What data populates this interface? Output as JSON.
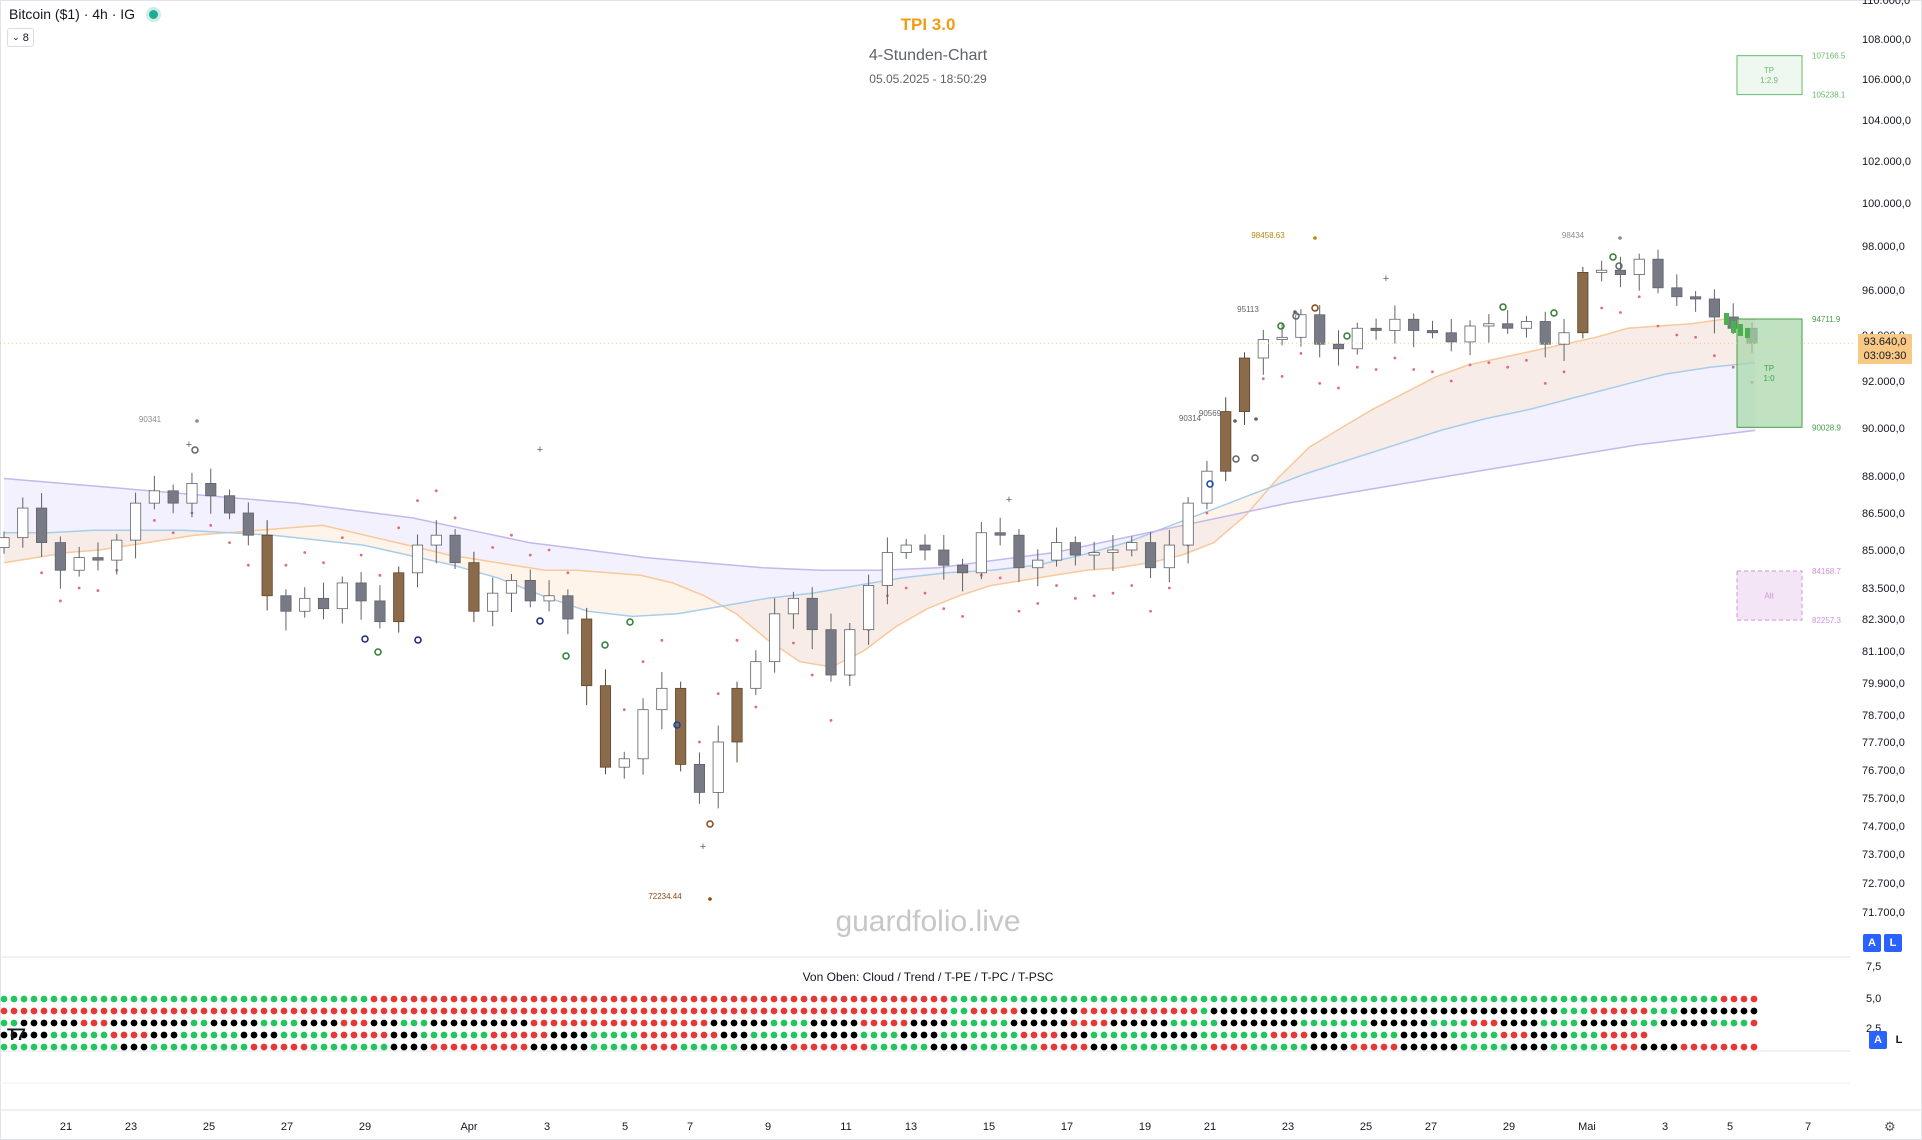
{
  "header": {
    "symbol": "Bitcoin ($1) · 4h · IG",
    "collapse_count": "8",
    "title": "TPI 3.0",
    "subtitle": "4-Stunden-Chart",
    "timestamp": "05.05.2025 - 18:50:29",
    "watermark": "guardfolio.live"
  },
  "indicator_panel": {
    "title": "Von Oben: Cloud / Trend / T-PE / T-PC / T-PSC",
    "axis_labels": [
      "7,5",
      "5,0",
      "2,5"
    ],
    "rows": [
      {
        "name": "Cloud",
        "pattern": [
          [
            "g",
            37
          ],
          [
            "r",
            58
          ],
          [
            "g",
            77
          ],
          [
            "r",
            4
          ]
        ]
      },
      {
        "name": "Trend",
        "pattern": [
          [
            "r",
            95
          ],
          [
            "g",
            2
          ],
          [
            "r",
            5
          ],
          [
            "k",
            6
          ],
          [
            "r",
            12
          ],
          [
            "g",
            1
          ],
          [
            "k",
            35
          ],
          [
            "g",
            3
          ],
          [
            "r",
            6
          ],
          [
            "g",
            3
          ],
          [
            "k",
            8
          ],
          [
            "g",
            6
          ],
          [
            "r",
            8
          ],
          [
            "g",
            4
          ],
          [
            "k",
            10
          ],
          [
            "g",
            3
          ],
          [
            "r",
            4
          ],
          [
            "g",
            3
          ],
          [
            "k",
            6
          ],
          [
            "g",
            5
          ],
          [
            "k",
            13
          ],
          [
            "r",
            12
          ]
        ]
      },
      {
        "name": "T-PE",
        "pattern": [
          [
            "g",
            2
          ],
          [
            "k",
            6
          ],
          [
            "r",
            3
          ],
          [
            "k",
            8
          ],
          [
            "g",
            2
          ],
          [
            "k",
            5
          ],
          [
            "g",
            4
          ],
          [
            "k",
            4
          ],
          [
            "r",
            3
          ],
          [
            "k",
            3
          ],
          [
            "g",
            3
          ],
          [
            "k",
            10
          ],
          [
            "r",
            18
          ],
          [
            "k",
            6
          ],
          [
            "g",
            4
          ],
          [
            "k",
            5
          ],
          [
            "r",
            5
          ],
          [
            "k",
            4
          ],
          [
            "g",
            6
          ],
          [
            "k",
            6
          ],
          [
            "r",
            4
          ],
          [
            "k",
            6
          ],
          [
            "g",
            5
          ],
          [
            "k",
            8
          ],
          [
            "g",
            7
          ],
          [
            "k",
            6
          ],
          [
            "g",
            4
          ],
          [
            "r",
            3
          ],
          [
            "k",
            4
          ],
          [
            "g",
            4
          ],
          [
            "k",
            5
          ],
          [
            "g",
            3
          ],
          [
            "k",
            5
          ],
          [
            "g",
            4
          ],
          [
            "r",
            4
          ],
          [
            "k",
            3
          ],
          [
            "k",
            10
          ]
        ]
      },
      {
        "name": "T-PC",
        "pattern": [
          [
            "k",
            5
          ],
          [
            "g",
            6
          ],
          [
            "r",
            4
          ],
          [
            "k",
            3
          ],
          [
            "g",
            6
          ],
          [
            "k",
            4
          ],
          [
            "g",
            5
          ],
          [
            "r",
            6
          ],
          [
            "k",
            3
          ],
          [
            "g",
            7
          ],
          [
            "r",
            6
          ],
          [
            "k",
            4
          ],
          [
            "g",
            5
          ],
          [
            "r",
            8
          ],
          [
            "k",
            3
          ],
          [
            "g",
            6
          ],
          [
            "k",
            5
          ],
          [
            "g",
            4
          ],
          [
            "k",
            4
          ],
          [
            "g",
            8
          ],
          [
            "r",
            4
          ],
          [
            "k",
            3
          ],
          [
            "g",
            6
          ],
          [
            "k",
            5
          ],
          [
            "g",
            7
          ],
          [
            "r",
            4
          ],
          [
            "k",
            3
          ],
          [
            "g",
            6
          ],
          [
            "k",
            5
          ],
          [
            "g",
            5
          ],
          [
            "r",
            3
          ],
          [
            "k",
            4
          ],
          [
            "g",
            3
          ],
          [
            "r",
            5
          ]
        ]
      },
      {
        "name": "T-PSC",
        "pattern": [
          [
            "g",
            12
          ],
          [
            "k",
            3
          ],
          [
            "g",
            10
          ],
          [
            "r",
            6
          ],
          [
            "g",
            8
          ],
          [
            "k",
            4
          ],
          [
            "r",
            10
          ],
          [
            "k",
            6
          ],
          [
            "g",
            5
          ],
          [
            "r",
            4
          ],
          [
            "g",
            6
          ],
          [
            "k",
            5
          ],
          [
            "r",
            8
          ],
          [
            "g",
            6
          ],
          [
            "k",
            4
          ],
          [
            "g",
            7
          ],
          [
            "r",
            5
          ],
          [
            "k",
            3
          ],
          [
            "g",
            9
          ],
          [
            "r",
            4
          ],
          [
            "g",
            6
          ],
          [
            "k",
            4
          ],
          [
            "r",
            5
          ],
          [
            "k",
            6
          ],
          [
            "g",
            5
          ],
          [
            "k",
            4
          ],
          [
            "g",
            6
          ],
          [
            "r",
            3
          ],
          [
            "k",
            4
          ],
          [
            "r",
            9
          ]
        ]
      }
    ]
  },
  "price_axis": {
    "labels": [
      "110.000,0",
      "108.000,0",
      "106.000,0",
      "104.000,0",
      "102.000,0",
      "100.000,0",
      "98.000,0",
      "96.000,0",
      "94.000,0",
      "92.000,0",
      "90.000,0",
      "88.000,0",
      "86.500,0",
      "85.000,0",
      "83.500,0",
      "82.300,0",
      "81.100,0",
      "79.900,0",
      "78.700,0",
      "77.700,0",
      "76.700,0",
      "75.700,0",
      "74.700,0",
      "73.700,0",
      "72.700,0",
      "71.700,0"
    ],
    "current_price": "93.640,0",
    "countdown": "03:09:30"
  },
  "time_axis": {
    "labels": [
      "21",
      "23",
      "25",
      "27",
      "29",
      "Apr",
      "3",
      "5",
      "7",
      "9",
      "11",
      "13",
      "15",
      "17",
      "19",
      "21",
      "23",
      "25",
      "27",
      "29",
      "Mai",
      "3",
      "5",
      "7"
    ]
  },
  "annotations": {
    "pivot_labels": [
      "90341",
      "98458.63",
      "95113",
      "98434",
      "90569",
      "90314",
      "72234.44"
    ],
    "tp_box_top": {
      "label1": "TP",
      "label2": "1:2.9",
      "upper": "107166.5",
      "lower": "105238.1"
    },
    "tp_box_mid": {
      "label1": "TP",
      "label2": "1:0",
      "upper": "94711.9",
      "lower": "90028.9"
    },
    "box_low": {
      "label": "Alt",
      "upper": "84168.7",
      "lower": "82257.3"
    }
  },
  "buttons": {
    "auto": "A",
    "log": "L"
  },
  "colors": {
    "title": "#f39c12",
    "up_candle": "#ffffff",
    "down_candle": "#787b86",
    "highlight_candle": "#8b6b4a",
    "green_dot": "#22c55e",
    "red_dot": "#e53935",
    "black_dot": "#000000",
    "tp_green": "#4caf50",
    "alt_purple": "#e1bee7"
  },
  "chart_data": {
    "type": "candlestick",
    "title": "TPI 3.0",
    "subtitle": "4-Stunden-Chart",
    "x_range": [
      "2025-03-20",
      "2025-05-07"
    ],
    "ylim": [
      71000,
      110000
    ],
    "series": [
      {
        "name": "",
        "values": [
          85500,
          86700,
          85300,
          84200,
          84700,
          84600,
          85400,
          86900,
          87400,
          86900,
          87700,
          87200,
          86500,
          85600,
          83200,
          82600,
          83100,
          82700,
          83700,
          83000,
          82200,
          84100,
          85200,
          85600,
          84500,
          82600,
          83300,
          83800,
          83000,
          83200,
          82300,
          79800,
          76800,
          77100,
          78900,
          79700,
          76900,
          75900,
          77700,
          79700,
          80700,
          82500,
          83100,
          81900,
          80200,
          81900,
          83600,
          84900,
          85200,
          85000,
          84400,
          84100,
          85700,
          85600,
          84300,
          84600,
          85300,
          84800,
          84900,
          85000,
          85300,
          84300,
          85200,
          86900,
          88200,
          90700,
          93000,
          93800,
          93900,
          94900,
          93600,
          93400,
          94300,
          94200,
          94700,
          94200,
          94100,
          93700,
          94400,
          94500,
          94300,
          94600,
          93600,
          94100,
          96800,
          96900,
          96700,
          97400,
          96100,
          95700,
          95600,
          94800,
          94300,
          93640
        ]
      },
      {
        "name": "EMA-fast",
        "values": [
          84500,
          84700,
          84900,
          85000,
          85200,
          85400,
          85600,
          85700,
          85800,
          85900,
          86000,
          85700,
          85400,
          85100,
          84800,
          84600,
          84400,
          84200,
          84200,
          84100,
          84000,
          83700,
          83200,
          82500,
          81500,
          80700,
          80500,
          81100,
          82000,
          82700,
          83200,
          83600,
          83800,
          84000,
          84200,
          84300,
          84500,
          84800,
          85300,
          86400,
          87900,
          89200,
          90000,
          90800,
          91500,
          92200,
          92700,
          93000,
          93300,
          93600,
          93900,
          94300,
          94400,
          94500,
          94700,
          94700
        ]
      },
      {
        "name": "EMA-mid",
        "values": [
          85700,
          85700,
          85800,
          85800,
          85800,
          85700,
          85600,
          85400,
          85200,
          84800,
          84400,
          83900,
          83200,
          82600,
          82400,
          82500,
          82800,
          83100,
          83300,
          83600,
          83900,
          84100,
          84200,
          84400,
          84800,
          85300,
          86000,
          86700,
          87400,
          88100,
          88700,
          89300,
          89900,
          90400,
          90800,
          91300,
          91800,
          92300,
          92600,
          92800
        ]
      },
      {
        "name": "EMA-slow",
        "values": [
          87900,
          87700,
          87500,
          87300,
          87100,
          86900,
          86600,
          86300,
          85800,
          85300,
          85000,
          84700,
          84500,
          84300,
          84200,
          84200,
          84300,
          84600,
          84900,
          85400,
          85900,
          86400,
          86900,
          87300,
          87700,
          88100,
          88500,
          88900,
          89300,
          89600,
          89900
        ]
      }
    ],
    "tp_levels": [
      107166.5,
      105238.1,
      94711.9,
      90028.9,
      84168.7,
      82257.3
    ],
    "pivots": [
      90341,
      98458.63,
      95113,
      98434,
      90569,
      90314,
      72234.44
    ],
    "grid": false
  }
}
